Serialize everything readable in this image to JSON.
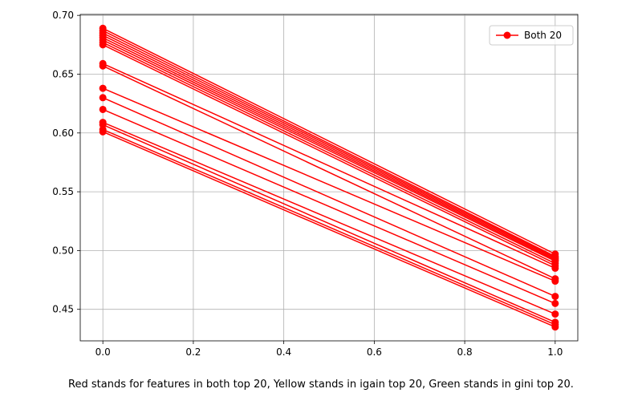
{
  "chart_data": {
    "type": "line",
    "x": [
      0.0,
      1.0
    ],
    "series": [
      {
        "name": "Both 20",
        "color": "#ff0000",
        "marker": "circle",
        "values": [
          0.689,
          0.497
        ]
      },
      {
        "values": [
          0.687,
          0.495
        ]
      },
      {
        "values": [
          0.685,
          0.494
        ]
      },
      {
        "values": [
          0.683,
          0.493
        ]
      },
      {
        "values": [
          0.681,
          0.492
        ]
      },
      {
        "values": [
          0.679,
          0.491
        ]
      },
      {
        "values": [
          0.677,
          0.489
        ]
      },
      {
        "values": [
          0.675,
          0.487
        ]
      },
      {
        "values": [
          0.659,
          0.485
        ]
      },
      {
        "values": [
          0.657,
          0.476
        ]
      },
      {
        "values": [
          0.638,
          0.474
        ]
      },
      {
        "values": [
          0.63,
          0.461
        ]
      },
      {
        "values": [
          0.62,
          0.455
        ]
      },
      {
        "values": [
          0.609,
          0.446
        ]
      },
      {
        "values": [
          0.607,
          0.439
        ]
      },
      {
        "values": [
          0.603,
          0.437
        ]
      },
      {
        "values": [
          0.601,
          0.435
        ]
      }
    ],
    "xlim": [
      -0.05,
      1.05
    ],
    "ylim": [
      0.4232,
      0.7008
    ],
    "xticks": [
      "0.0",
      "0.2",
      "0.4",
      "0.6",
      "0.8",
      "1.0"
    ],
    "xtick_values": [
      0.0,
      0.2,
      0.4,
      0.6,
      0.8,
      1.0
    ],
    "yticks": [
      "0.45",
      "0.50",
      "0.55",
      "0.60",
      "0.65",
      "0.70"
    ],
    "ytick_values": [
      0.45,
      0.5,
      0.55,
      0.6,
      0.65,
      0.7
    ],
    "grid": true,
    "legend": {
      "placement": "top-right",
      "entries": [
        "Both 20"
      ]
    },
    "title": "",
    "xlabel": "",
    "ylabel": ""
  },
  "caption": "Red stands for features in both top 20, Yellow stands in igain top 20, Green stands in gini top 20."
}
